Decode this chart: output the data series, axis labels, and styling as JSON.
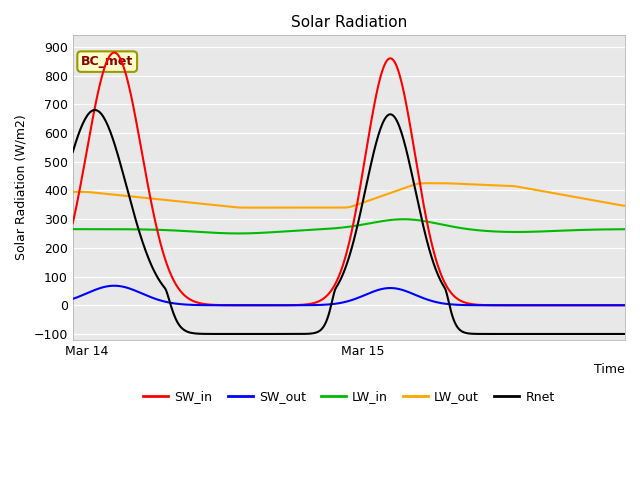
{
  "title": "Solar Radiation",
  "ylabel": "Solar Radiation (W/m2)",
  "xlabel": "Time",
  "annotation": "BC_met",
  "bg_color": "#e8e8e8",
  "colors": {
    "SW_in": "#ff0000",
    "SW_out": "#0000ff",
    "LW_in": "#00bb00",
    "LW_out": "#ffa500",
    "Rnet": "#000000"
  },
  "yticks": [
    -100,
    0,
    100,
    200,
    300,
    400,
    500,
    600,
    700,
    800,
    900
  ],
  "ylim": [
    -120,
    940
  ],
  "n_points": 500
}
